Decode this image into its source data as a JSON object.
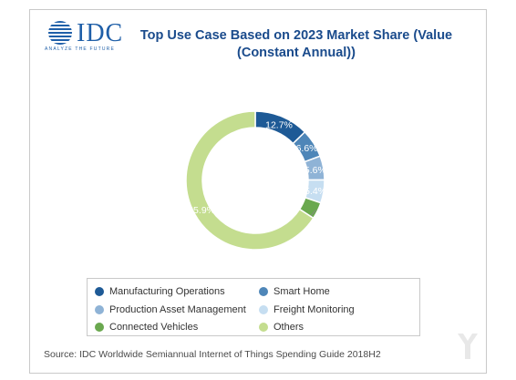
{
  "logo": {
    "name": "IDC",
    "tagline": "ANALYZE THE FUTURE"
  },
  "chart_data": {
    "type": "pie",
    "variant": "donut",
    "title_lines": [
      "Top Use Case Based on 2023 Market Share (Value",
      "(Constant Annual))"
    ],
    "slices": [
      {
        "name": "Manufacturing Operations",
        "value": 12.7,
        "label": "12.7%",
        "color": "#1e5a96"
      },
      {
        "name": "Smart Home",
        "value": 6.6,
        "label": "6.6%",
        "color": "#4e86b8"
      },
      {
        "name": "Production Asset Management",
        "value": 5.6,
        "label": "5.6%",
        "color": "#8fb3d6"
      },
      {
        "name": "Freight Monitoring",
        "value": 5.4,
        "label": "5.4%",
        "color": "#c6def1"
      },
      {
        "name": "Connected Vehicles",
        "value": 3.9,
        "label": "3.9%",
        "color": "#6aa84f"
      },
      {
        "name": "Others",
        "value": 65.9,
        "label": "65.9%",
        "color": "#c4dd8f"
      }
    ],
    "legend_placement": "bottom",
    "legend_order": [
      0,
      1,
      2,
      3,
      4,
      5
    ]
  },
  "source": "Source: IDC Worldwide Semiannual Internet of Things Spending Guide 2018H2"
}
